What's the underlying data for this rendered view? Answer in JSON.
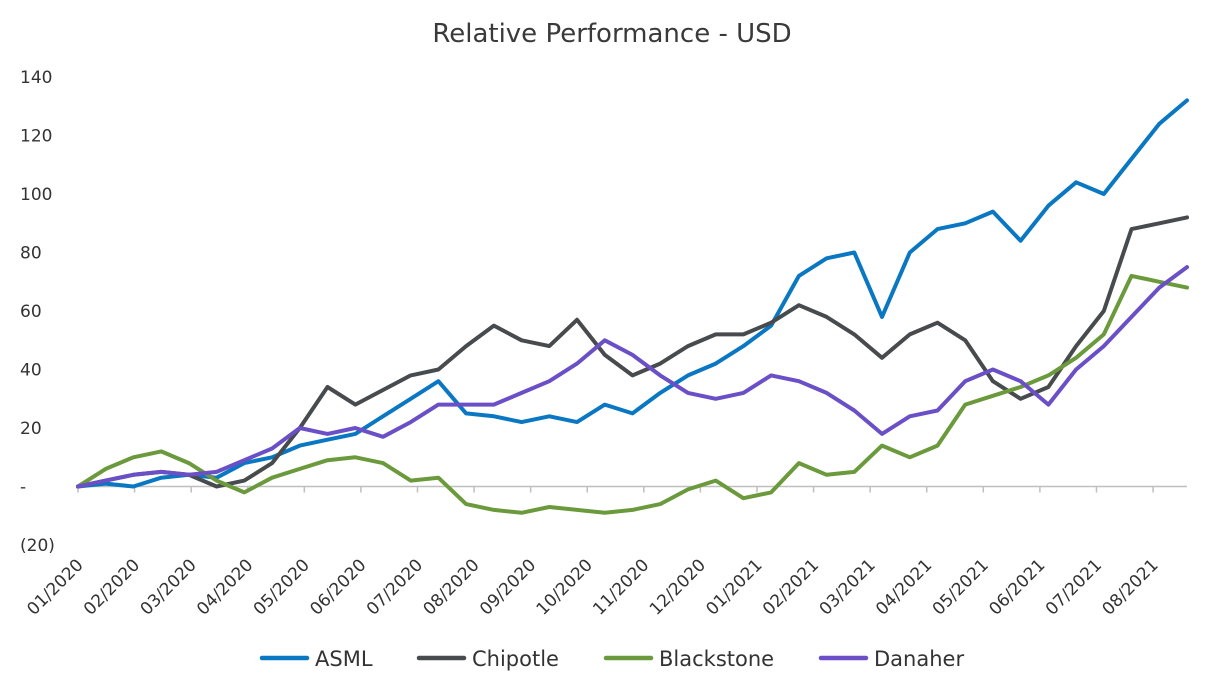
{
  "chart_data": {
    "type": "line",
    "title": "Relative Performance - USD",
    "xlabel": "",
    "ylabel": "",
    "ylim": [
      -20,
      140
    ],
    "grid": false,
    "legend_position": "bottom",
    "y_ticks": [
      {
        "value": 140,
        "label": "140"
      },
      {
        "value": 120,
        "label": "120"
      },
      {
        "value": 100,
        "label": "100"
      },
      {
        "value": 80,
        "label": "80"
      },
      {
        "value": 60,
        "label": "60"
      },
      {
        "value": 40,
        "label": "40"
      },
      {
        "value": 20,
        "label": "20"
      },
      {
        "value": 0,
        "label": "-"
      },
      {
        "value": -20,
        "label": "(20)"
      }
    ],
    "x_ticks": [
      "01/2020",
      "02/2020",
      "03/2020",
      "04/2020",
      "05/2020",
      "06/2020",
      "07/2020",
      "08/2020",
      "09/2020",
      "10/2020",
      "11/2020",
      "12/2020",
      "01/2021",
      "02/2021",
      "03/2021",
      "04/2021",
      "05/2021",
      "06/2021",
      "07/2021",
      "08/2021"
    ],
    "x": [
      "2020-01",
      "2020-01-15",
      "2020-02",
      "2020-02-15",
      "2020-03",
      "2020-03-15",
      "2020-04",
      "2020-04-15",
      "2020-05",
      "2020-05-15",
      "2020-06",
      "2020-06-15",
      "2020-07",
      "2020-07-15",
      "2020-08",
      "2020-08-15",
      "2020-09",
      "2020-09-15",
      "2020-10",
      "2020-10-15",
      "2020-11",
      "2020-11-15",
      "2020-12",
      "2020-12-15",
      "2021-01",
      "2021-01-15",
      "2021-02",
      "2021-02-15",
      "2021-03",
      "2021-03-15",
      "2021-04",
      "2021-04-15",
      "2021-05",
      "2021-05-15",
      "2021-06",
      "2021-06-15",
      "2021-07",
      "2021-07-15",
      "2021-08",
      "2021-08-15",
      "2021-08-31"
    ],
    "series": [
      {
        "name": "ASML",
        "color": "#0a77c3",
        "values": [
          0,
          1,
          0,
          3,
          4,
          3,
          8,
          10,
          14,
          16,
          18,
          24,
          30,
          36,
          25,
          24,
          22,
          24,
          22,
          28,
          25,
          32,
          38,
          42,
          48,
          55,
          72,
          78,
          80,
          58,
          80,
          88,
          90,
          94,
          84,
          96,
          104,
          100,
          112,
          124,
          132
        ]
      },
      {
        "name": "Chipotle",
        "color": "#474b4e",
        "values": [
          0,
          2,
          4,
          5,
          4,
          0,
          2,
          8,
          20,
          34,
          28,
          33,
          38,
          40,
          48,
          55,
          50,
          48,
          57,
          45,
          38,
          42,
          48,
          52,
          52,
          56,
          62,
          58,
          52,
          44,
          52,
          56,
          50,
          36,
          30,
          34,
          48,
          60,
          88,
          90,
          92
        ]
      },
      {
        "name": "Blackstone",
        "color": "#6b9a3c",
        "values": [
          0,
          6,
          10,
          12,
          8,
          2,
          -2,
          3,
          6,
          9,
          10,
          8,
          2,
          3,
          -6,
          -8,
          -9,
          -7,
          -8,
          -9,
          -8,
          -6,
          -1,
          2,
          -4,
          -2,
          8,
          4,
          5,
          14,
          10,
          14,
          28,
          31,
          34,
          38,
          44,
          52,
          72,
          70,
          68
        ]
      },
      {
        "name": "Danaher",
        "color": "#6a4fc6",
        "values": [
          0,
          2,
          4,
          5,
          4,
          5,
          9,
          13,
          20,
          18,
          20,
          17,
          22,
          28,
          28,
          28,
          32,
          36,
          42,
          50,
          45,
          38,
          32,
          30,
          32,
          38,
          36,
          32,
          26,
          18,
          24,
          26,
          36,
          40,
          36,
          28,
          40,
          48,
          58,
          68,
          75
        ]
      }
    ]
  }
}
